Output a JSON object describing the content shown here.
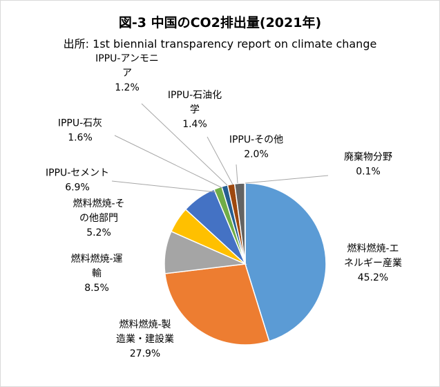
{
  "chart_data": {
    "type": "pie",
    "title": "図-3 中国のCO2排出量(2021年)",
    "subtitle": "出所: 1st biennial transparency report on climate change",
    "slices": [
      {
        "label": "燃料燃焼-エネルギー産業",
        "label_lines": [
          "燃料燃焼-エ",
          "ネルギー産業"
        ],
        "value": 45.2,
        "display": "45.2%",
        "color": "#5b9bd5"
      },
      {
        "label": "燃料燃焼-製造業・建設業",
        "label_lines": [
          "燃料燃焼-製",
          "造業・建設業"
        ],
        "value": 27.9,
        "display": "27.9%",
        "color": "#ed7d31"
      },
      {
        "label": "燃料燃焼-運輸",
        "label_lines": [
          "燃料燃焼-運",
          "輸"
        ],
        "value": 8.5,
        "display": "8.5%",
        "color": "#a5a5a5"
      },
      {
        "label": "燃料燃焼-その他部門",
        "label_lines": [
          "燃料燃焼-そ",
          "の他部門"
        ],
        "value": 5.2,
        "display": "5.2%",
        "color": "#ffc000"
      },
      {
        "label": "IPPU-セメント",
        "label_lines": [
          "IPPU-セメント"
        ],
        "value": 6.9,
        "display": "6.9%",
        "color": "#4472c4"
      },
      {
        "label": "IPPU-石灰",
        "label_lines": [
          "IPPU-石灰"
        ],
        "value": 1.6,
        "display": "1.6%",
        "color": "#70ad47"
      },
      {
        "label": "IPPU-アンモニア",
        "label_lines": [
          "IPPU-アンモニ",
          "ア"
        ],
        "value": 1.2,
        "display": "1.2%",
        "color": "#255e91"
      },
      {
        "label": "IPPU-石油化学",
        "label_lines": [
          "IPPU-石油化",
          "学"
        ],
        "value": 1.4,
        "display": "1.4%",
        "color": "#9e480e"
      },
      {
        "label": "IPPU-その他",
        "label_lines": [
          "IPPU-その他"
        ],
        "value": 2.0,
        "display": "2.0%",
        "color": "#636363"
      },
      {
        "label": "廃棄物分野",
        "label_lines": [
          "廃棄物分野"
        ],
        "value": 0.1,
        "display": "0.1%",
        "color": "#997300"
      }
    ]
  }
}
